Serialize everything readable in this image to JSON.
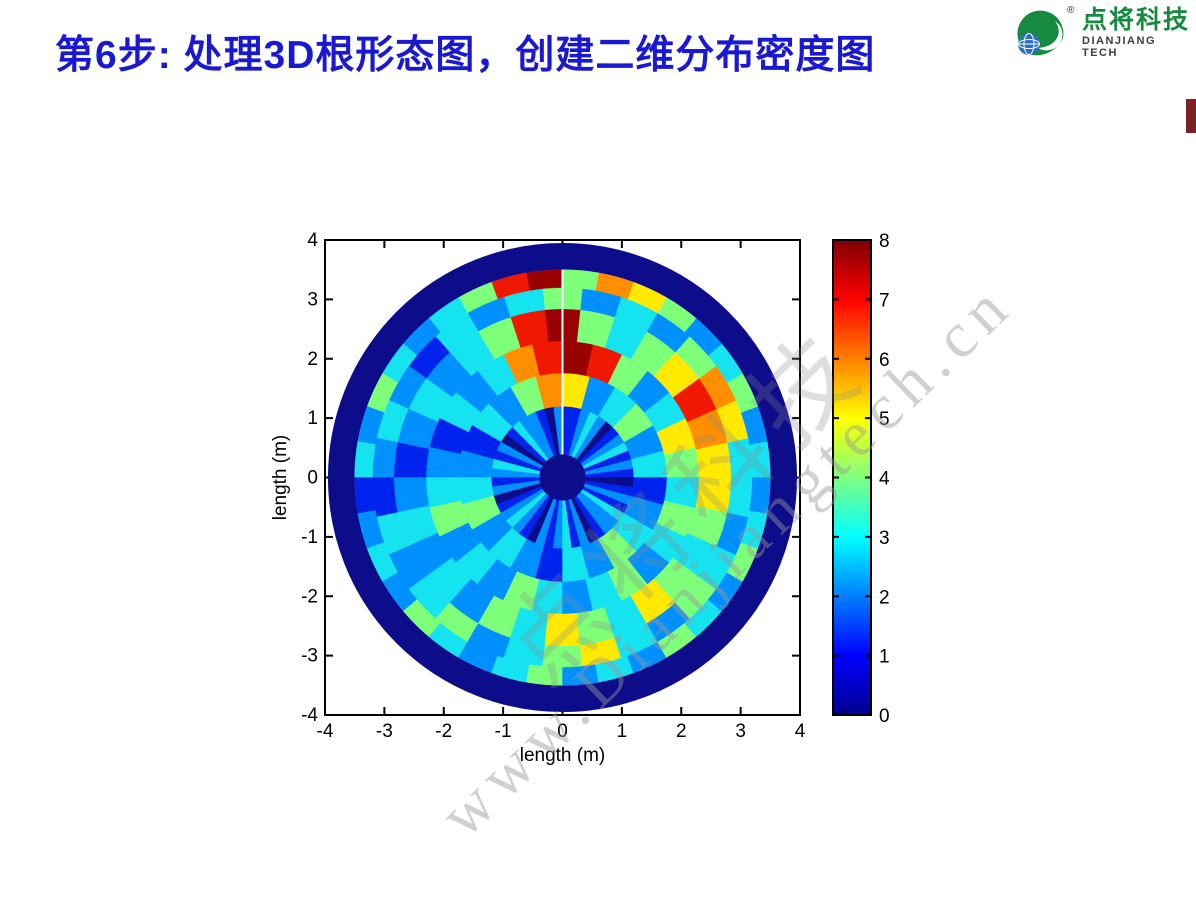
{
  "slide": {
    "title": "第6步: 处理3D根形态图，创建二维分布密度图",
    "title_color": "#1a18d0",
    "accent_bar_color": "#7c2125"
  },
  "logo": {
    "brand_cn": "点将科技",
    "brand_en": "DIANJIANG TECH",
    "registered_mark": "®",
    "brand_color": "#168a3f",
    "globe_color": "#2a6fc0"
  },
  "watermark": {
    "url_text": "www.Dianjiangtech.cn",
    "cn_text": "点将科技"
  },
  "chart_data": {
    "type": "polar-density-heatmap",
    "title": "",
    "xlabel": "length (m)",
    "ylabel": "length (m)",
    "xlim": [
      -4,
      4
    ],
    "ylim": [
      -4,
      4
    ],
    "x_ticks": [
      -4,
      -3,
      -2,
      -1,
      0,
      1,
      2,
      3,
      4
    ],
    "y_ticks": [
      -4,
      -3,
      -2,
      -1,
      0,
      1,
      2,
      3,
      4
    ],
    "grid": false,
    "colorbar": {
      "min": 0,
      "max": 8,
      "ticks": [
        0,
        1,
        2,
        3,
        4,
        5,
        6,
        7,
        8
      ],
      "colormap": "jet",
      "stops": [
        [
          0,
          "#00008f"
        ],
        [
          0.125,
          "#0000ff"
        ],
        [
          0.375,
          "#00ffff"
        ],
        [
          0.625,
          "#ffff00"
        ],
        [
          0.875,
          "#ff0000"
        ],
        [
          1,
          "#7f0000"
        ]
      ]
    },
    "palette": {
      "0": "#0d0d8c",
      "1": "#0023ee",
      "2": "#0090ff",
      "3": "#16e3f0",
      "4": "#7dff7a",
      "5": "#ffe900",
      "6": "#ff8f00",
      "7": "#f01800",
      "8": "#990000"
    },
    "center_disk": {
      "r": 0.39,
      "value": 0
    },
    "outer_ring": {
      "r0": 3.5,
      "r1": 3.95,
      "value": 0
    },
    "seam": {
      "angle_deg": 90,
      "color": "#ffffff"
    },
    "rings": [
      {
        "r0": 0.39,
        "r1": 1.2,
        "values": [
          1,
          2,
          1,
          3,
          2,
          1,
          0,
          2,
          3,
          2,
          1,
          1,
          2,
          0,
          1,
          2,
          2,
          3,
          1,
          0,
          2,
          1,
          3,
          2,
          1,
          2,
          0,
          1,
          2,
          3,
          2,
          1,
          0,
          2,
          1,
          2,
          3,
          1,
          2,
          0,
          1,
          2,
          2,
          3,
          1,
          2,
          1,
          0
        ]
      },
      {
        "r0": 1.2,
        "r1": 1.76,
        "values": [
          3,
          2,
          4,
          3,
          2,
          5,
          6,
          4,
          2,
          3,
          1,
          2,
          3,
          4,
          2,
          3,
          2,
          1,
          3,
          2,
          4,
          3,
          2,
          1
        ]
      },
      {
        "r0": 1.76,
        "r1": 2.3,
        "values": [
          4,
          5,
          3,
          2,
          4,
          7,
          8,
          7,
          6,
          3,
          2,
          3,
          1,
          2,
          3,
          4,
          2,
          3,
          2,
          4,
          3,
          2,
          3,
          4,
          2,
          3,
          4,
          3
        ]
      },
      {
        "r0": 2.3,
        "r1": 2.84,
        "values": [
          5,
          6,
          7,
          5,
          4,
          3,
          4,
          8,
          7,
          4,
          3,
          2,
          3,
          2,
          1,
          2,
          3,
          2,
          3,
          2,
          4,
          3,
          5,
          4,
          3,
          5,
          4,
          3,
          4,
          5
        ]
      },
      {
        "r0": 2.84,
        "r1": 3.2,
        "values": [
          3,
          5,
          6,
          4,
          2,
          3,
          2,
          4,
          3,
          2,
          3,
          1,
          2,
          3,
          2,
          1,
          3,
          2,
          3,
          4,
          2,
          3,
          4,
          5,
          3,
          2,
          4,
          3,
          2,
          3
        ]
      },
      {
        "r0": 3.2,
        "r1": 3.5,
        "values": [
          3,
          2,
          4,
          3,
          2,
          4,
          5,
          6,
          4,
          8,
          7,
          4,
          3,
          2,
          3,
          4,
          2,
          3,
          1,
          2,
          3,
          2,
          4,
          3,
          2,
          3,
          4,
          2,
          3,
          2,
          4,
          3,
          2,
          4,
          3,
          2
        ]
      }
    ]
  }
}
